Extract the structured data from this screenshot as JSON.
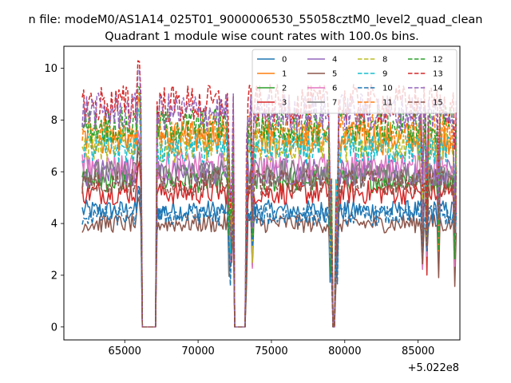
{
  "figure": {
    "suptitle": "n file: modeM0/AS1A14_025T01_9000006530_55058cztM0_level2_quad_clean",
    "title": "Quadrant 1 module wise count rates with 100.0s bins.",
    "offset_label": "+5.022e8"
  },
  "chart_data": {
    "type": "line",
    "title": "Quadrant 1 module wise count rates with 100.0s bins.",
    "xlabel": "",
    "ylabel": "",
    "x_offset": 502200000,
    "xlim": [
      60850,
      87850
    ],
    "ylim": [
      -0.5,
      10.85
    ],
    "x_range": [
      62100,
      87600
    ],
    "bin_seconds": 100,
    "xticks": [
      65000,
      70000,
      75000,
      80000,
      85000
    ],
    "xtick_labels": [
      "65000",
      "70000",
      "75000",
      "80000",
      "85000"
    ],
    "yticks": [
      0,
      2,
      4,
      6,
      8,
      10
    ],
    "ytick_labels": [
      "0",
      "2",
      "4",
      "6",
      "8",
      "10"
    ],
    "grid": false,
    "legend_location": "top-right",
    "legend_columns": 4,
    "gaps": [
      {
        "start": 66150,
        "end": 67100,
        "value": 0
      },
      {
        "start": 72450,
        "end": 73200,
        "value": 0
      },
      {
        "start": 79200,
        "end": 79350,
        "value": 0
      }
    ],
    "series": [
      {
        "name": "0",
        "mean": 4.5,
        "color": "#1f77b4",
        "dash": "solid"
      },
      {
        "name": "1",
        "mean": 7.3,
        "color": "#ff7f0e",
        "dash": "solid"
      },
      {
        "name": "2",
        "mean": 5.7,
        "color": "#2ca02c",
        "dash": "solid"
      },
      {
        "name": "3",
        "mean": 5.2,
        "color": "#d62728",
        "dash": "solid"
      },
      {
        "name": "4",
        "mean": 6.0,
        "color": "#9467bd",
        "dash": "solid"
      },
      {
        "name": "5",
        "mean": 4.0,
        "color": "#8c564b",
        "dash": "solid"
      },
      {
        "name": "6",
        "mean": 6.2,
        "color": "#e377c2",
        "dash": "solid"
      },
      {
        "name": "7",
        "mean": 5.9,
        "color": "#7f7f7f",
        "dash": "solid"
      },
      {
        "name": "8",
        "mean": 7.0,
        "color": "#bcbd22",
        "dash": "dashed"
      },
      {
        "name": "9",
        "mean": 6.9,
        "color": "#17becf",
        "dash": "dashed"
      },
      {
        "name": "10",
        "mean": 4.3,
        "color": "#1f77b4",
        "dash": "dashed"
      },
      {
        "name": "11",
        "mean": 7.6,
        "color": "#ff7f0e",
        "dash": "dashed"
      },
      {
        "name": "12",
        "mean": 7.8,
        "color": "#2ca02c",
        "dash": "dashed"
      },
      {
        "name": "13",
        "mean": 8.6,
        "color": "#d62728",
        "dash": "dashed"
      },
      {
        "name": "14",
        "mean": 8.3,
        "color": "#9467bd",
        "dash": "dashed"
      },
      {
        "name": "15",
        "mean": 5.6,
        "color": "#8c564b",
        "dash": "dashed"
      }
    ]
  }
}
